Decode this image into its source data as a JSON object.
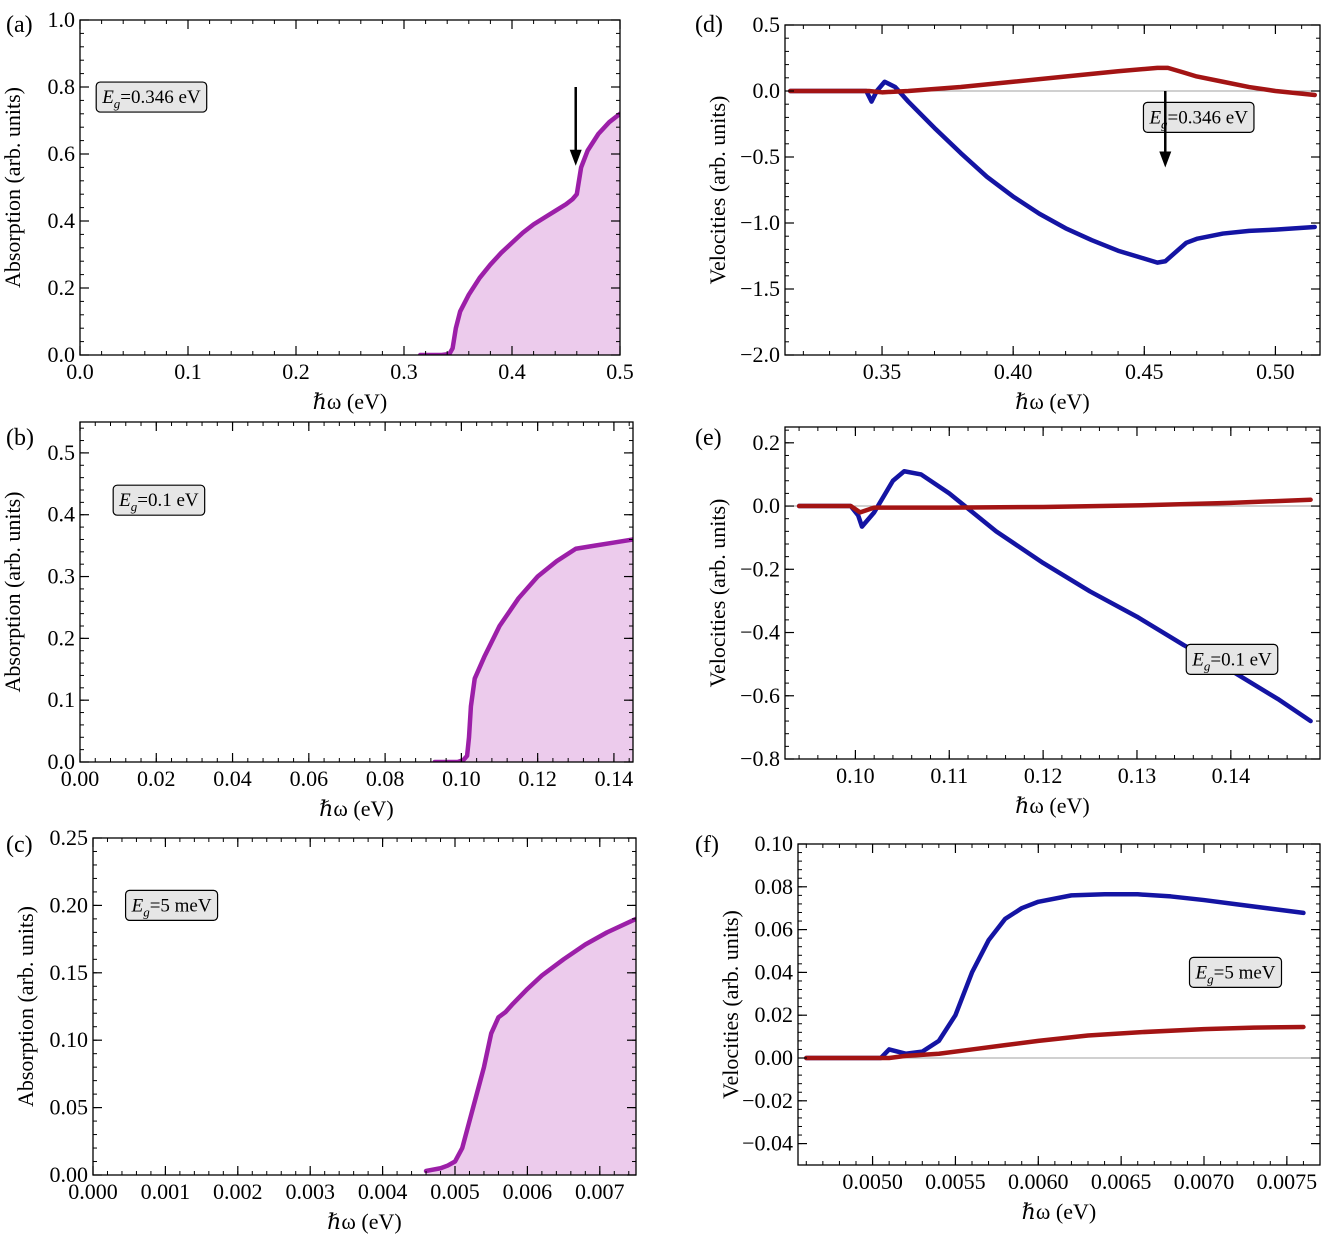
{
  "colors": {
    "absorption_line": "#9c1fa8",
    "absorption_fill": "#eccbec",
    "velocity_blue": "#1414a3",
    "velocity_red": "#a31414",
    "zero_line": "#a0a0a0",
    "frame": "#000000",
    "box_fill": "#e6e6e6"
  },
  "chart_data": [
    {
      "id": "a",
      "panel_label": "(a)",
      "type": "area",
      "xlabel": "ℏω (eV)",
      "ylabel": "Absorption (arb. units)",
      "xlim": [
        0.0,
        0.5
      ],
      "ylim": [
        0.0,
        1.0
      ],
      "xticks": [
        0.0,
        0.1,
        0.2,
        0.3,
        0.4,
        0.5
      ],
      "xtick_labels": [
        "0.0",
        "0.1",
        "0.2",
        "0.3",
        "0.4",
        "0.5"
      ],
      "yticks": [
        0.0,
        0.2,
        0.4,
        0.6,
        0.8,
        1.0
      ],
      "ytick_labels": [
        "0.0",
        "0.2",
        "0.4",
        "0.6",
        "0.8",
        "1.0"
      ],
      "annotation": {
        "label_italic": "E",
        "label_sub": "g",
        "label_value": "=0.346 eV",
        "ax": 0.03,
        "ay": 0.77
      },
      "arrow": {
        "x": 0.459,
        "y_from": 0.8,
        "y_to": 0.565
      },
      "zero_line": false,
      "series": [
        {
          "fill": true,
          "color_key": "absorption_line",
          "x": [
            0.315,
            0.335,
            0.342,
            0.345,
            0.348,
            0.352,
            0.36,
            0.37,
            0.38,
            0.39,
            0.4,
            0.41,
            0.42,
            0.43,
            0.44,
            0.45,
            0.456,
            0.46,
            0.464,
            0.47,
            0.48,
            0.49,
            0.5
          ],
          "y": [
            0.0,
            0.0,
            0.003,
            0.02,
            0.08,
            0.13,
            0.18,
            0.23,
            0.27,
            0.305,
            0.335,
            0.365,
            0.39,
            0.41,
            0.43,
            0.45,
            0.465,
            0.48,
            0.56,
            0.61,
            0.66,
            0.695,
            0.72
          ]
        }
      ]
    },
    {
      "id": "b",
      "panel_label": "(b)",
      "type": "area",
      "xlabel": "ℏω (eV)",
      "ylabel": "Absorption (arb. units)",
      "xlim": [
        0.0,
        0.145
      ],
      "ylim": [
        0.0,
        0.55
      ],
      "xticks": [
        0.0,
        0.02,
        0.04,
        0.06,
        0.08,
        0.1,
        0.12,
        0.14
      ],
      "xtick_labels": [
        "0.00",
        "0.02",
        "0.04",
        "0.06",
        "0.08",
        "0.10",
        "0.12",
        "0.14"
      ],
      "yticks": [
        0.0,
        0.1,
        0.2,
        0.3,
        0.4,
        0.5
      ],
      "ytick_labels": [
        "0.0",
        "0.1",
        "0.2",
        "0.3",
        "0.4",
        "0.5"
      ],
      "annotation": {
        "label_italic": "E",
        "label_sub": "g",
        "label_value": "=0.1 eV",
        "ax": 0.06,
        "ay": 0.77
      },
      "zero_line": false,
      "series": [
        {
          "fill": true,
          "color_key": "absorption_line",
          "x": [
            0.093,
            0.099,
            0.1005,
            0.1015,
            0.102,
            0.1025,
            0.1035,
            0.106,
            0.11,
            0.115,
            0.12,
            0.125,
            0.13,
            0.135,
            0.14,
            0.145
          ],
          "y": [
            0.0,
            0.0,
            0.003,
            0.01,
            0.04,
            0.09,
            0.135,
            0.17,
            0.22,
            0.265,
            0.3,
            0.325,
            0.345,
            0.35,
            0.355,
            0.36
          ]
        }
      ]
    },
    {
      "id": "c",
      "panel_label": "(c)",
      "type": "area",
      "xlabel": "ℏω (eV)",
      "ylabel": "Absorption (arb. units)",
      "xlim": [
        0.0,
        0.0075
      ],
      "ylim": [
        0.0,
        0.25
      ],
      "xticks": [
        0.0,
        0.001,
        0.002,
        0.003,
        0.004,
        0.005,
        0.006,
        0.007
      ],
      "xtick_labels": [
        "0.000",
        "0.001",
        "0.002",
        "0.003",
        "0.004",
        "0.005",
        "0.006",
        "0.007"
      ],
      "yticks": [
        0.0,
        0.05,
        0.1,
        0.15,
        0.2,
        0.25
      ],
      "ytick_labels": [
        "0.00",
        "0.05",
        "0.10",
        "0.15",
        "0.20",
        "0.25"
      ],
      "annotation": {
        "label_italic": "E",
        "label_sub": "g",
        "label_value": "=5 meV",
        "ax": 0.06,
        "ay": 0.8
      },
      "zero_line": false,
      "series": [
        {
          "fill": true,
          "color_key": "absorption_line",
          "x": [
            0.0046,
            0.0048,
            0.0049,
            0.005,
            0.0051,
            0.0052,
            0.0053,
            0.0054,
            0.0055,
            0.0056,
            0.0057,
            0.0058,
            0.006,
            0.0062,
            0.0065,
            0.0068,
            0.0071,
            0.0075
          ],
          "y": [
            0.003,
            0.005,
            0.007,
            0.01,
            0.02,
            0.04,
            0.06,
            0.08,
            0.105,
            0.117,
            0.121,
            0.127,
            0.138,
            0.148,
            0.16,
            0.171,
            0.18,
            0.19
          ]
        }
      ]
    },
    {
      "id": "d",
      "panel_label": "(d)",
      "type": "line",
      "xlabel": "ℏω (eV)",
      "ylabel": "Velocities (arb. units)",
      "xlim": [
        0.313,
        0.517
      ],
      "ylim": [
        -2.0,
        0.5
      ],
      "xticks": [
        0.35,
        0.4,
        0.45,
        0.5
      ],
      "xtick_labels": [
        "0.35",
        "0.40",
        "0.45",
        "0.50"
      ],
      "yticks": [
        -2.0,
        -1.5,
        -1.0,
        -0.5,
        0.0,
        0.5
      ],
      "ytick_labels": [
        "−2.0",
        "−1.5",
        "−1.0",
        "−0.5",
        "0.0",
        "0.5"
      ],
      "annotation": {
        "label_italic": "E",
        "label_sub": "g",
        "label_value": "=0.346 eV",
        "ax": 0.67,
        "ay": 0.72
      },
      "arrow": {
        "x": 0.458,
        "y_from": 0.0,
        "y_to": -0.58
      },
      "zero_line": true,
      "series": [
        {
          "fill": false,
          "color_key": "velocity_blue",
          "x": [
            0.315,
            0.335,
            0.344,
            0.346,
            0.348,
            0.351,
            0.355,
            0.36,
            0.37,
            0.38,
            0.39,
            0.4,
            0.41,
            0.42,
            0.43,
            0.44,
            0.45,
            0.455,
            0.458,
            0.462,
            0.466,
            0.47,
            0.48,
            0.49,
            0.5,
            0.515
          ],
          "y": [
            0.0,
            0.0,
            0.0,
            -0.08,
            0.0,
            0.07,
            0.03,
            -0.08,
            -0.28,
            -0.47,
            -0.65,
            -0.8,
            -0.93,
            -1.04,
            -1.13,
            -1.21,
            -1.27,
            -1.3,
            -1.29,
            -1.22,
            -1.15,
            -1.12,
            -1.08,
            -1.06,
            -1.05,
            -1.03
          ]
        },
        {
          "fill": false,
          "color_key": "velocity_red",
          "x": [
            0.315,
            0.34,
            0.345,
            0.35,
            0.36,
            0.38,
            0.4,
            0.42,
            0.44,
            0.455,
            0.459,
            0.465,
            0.47,
            0.48,
            0.49,
            0.5,
            0.515
          ],
          "y": [
            0.0,
            0.0,
            0.0,
            -0.01,
            0.0,
            0.03,
            0.07,
            0.11,
            0.15,
            0.175,
            0.175,
            0.14,
            0.11,
            0.07,
            0.03,
            0.0,
            -0.03
          ]
        }
      ]
    },
    {
      "id": "e",
      "panel_label": "(e)",
      "type": "line",
      "xlabel": "ℏω (eV)",
      "ylabel": "Velocities (arb. units)",
      "xlim": [
        0.0925,
        0.1495
      ],
      "ylim": [
        -0.8,
        0.25
      ],
      "xticks": [
        0.1,
        0.11,
        0.12,
        0.13,
        0.14
      ],
      "xtick_labels": [
        "0.10",
        "0.11",
        "0.12",
        "0.13",
        "0.14"
      ],
      "yticks": [
        -0.8,
        -0.6,
        -0.4,
        -0.2,
        0.0,
        0.2
      ],
      "ytick_labels": [
        "−0.8",
        "−0.6",
        "−0.4",
        "−0.2",
        "0.0",
        "0.2"
      ],
      "annotation": {
        "label_italic": "E",
        "label_sub": "g",
        "label_value": "=0.1 eV",
        "ax": 0.75,
        "ay": 0.3
      },
      "zero_line": true,
      "series": [
        {
          "fill": false,
          "color_key": "velocity_blue",
          "x": [
            0.094,
            0.098,
            0.0995,
            0.1003,
            0.1007,
            0.102,
            0.104,
            0.1052,
            0.107,
            0.11,
            0.115,
            0.12,
            0.125,
            0.13,
            0.135,
            0.14,
            0.145,
            0.1485
          ],
          "y": [
            0.0,
            0.0,
            0.0,
            -0.03,
            -0.065,
            -0.02,
            0.08,
            0.11,
            0.1,
            0.04,
            -0.08,
            -0.18,
            -0.27,
            -0.35,
            -0.44,
            -0.52,
            -0.61,
            -0.68
          ]
        },
        {
          "fill": false,
          "color_key": "velocity_red",
          "x": [
            0.094,
            0.0995,
            0.1005,
            0.102,
            0.11,
            0.12,
            0.13,
            0.14,
            0.1485
          ],
          "y": [
            0.0,
            0.0,
            -0.02,
            -0.005,
            -0.005,
            -0.003,
            0.002,
            0.01,
            0.02
          ]
        }
      ]
    },
    {
      "id": "f",
      "panel_label": "(f)",
      "type": "line",
      "xlabel": "ℏω (eV)",
      "ylabel": "Velocities (arb. units)",
      "xlim": [
        0.00455,
        0.0077
      ],
      "ylim": [
        -0.05,
        0.1
      ],
      "xticks": [
        0.005,
        0.0055,
        0.006,
        0.0065,
        0.007,
        0.0075
      ],
      "xtick_labels": [
        "0.0050",
        "0.0055",
        "0.0060",
        "0.0065",
        "0.0070",
        "0.0075"
      ],
      "yticks": [
        -0.04,
        -0.02,
        0.0,
        0.02,
        0.04,
        0.06,
        0.08,
        0.1
      ],
      "ytick_labels": [
        "−0.04",
        "−0.02",
        "0.00",
        "0.02",
        "0.04",
        "0.06",
        "0.08",
        "0.10"
      ],
      "annotation": {
        "label_italic": "E",
        "label_sub": "g",
        "label_value": "=5 meV",
        "ax": 0.75,
        "ay": 0.6
      },
      "zero_line": true,
      "series": [
        {
          "fill": false,
          "color_key": "velocity_blue",
          "x": [
            0.0046,
            0.005,
            0.00505,
            0.0051,
            0.00515,
            0.0052,
            0.0053,
            0.0054,
            0.0055,
            0.0056,
            0.0057,
            0.0058,
            0.0059,
            0.006,
            0.0062,
            0.0064,
            0.0066,
            0.0068,
            0.007,
            0.0072,
            0.0074,
            0.0076
          ],
          "y": [
            0.0,
            0.0,
            0.0,
            0.004,
            0.003,
            0.002,
            0.003,
            0.008,
            0.02,
            0.04,
            0.055,
            0.065,
            0.07,
            0.073,
            0.076,
            0.0765,
            0.0765,
            0.0755,
            0.0738,
            0.0718,
            0.0698,
            0.0678
          ]
        },
        {
          "fill": false,
          "color_key": "velocity_red",
          "x": [
            0.0046,
            0.0051,
            0.0052,
            0.0054,
            0.0056,
            0.0058,
            0.006,
            0.0063,
            0.0066,
            0.007,
            0.0073,
            0.0076
          ],
          "y": [
            0.0,
            0.0,
            0.001,
            0.002,
            0.004,
            0.006,
            0.008,
            0.0105,
            0.012,
            0.0135,
            0.0142,
            0.0145
          ]
        }
      ]
    }
  ]
}
